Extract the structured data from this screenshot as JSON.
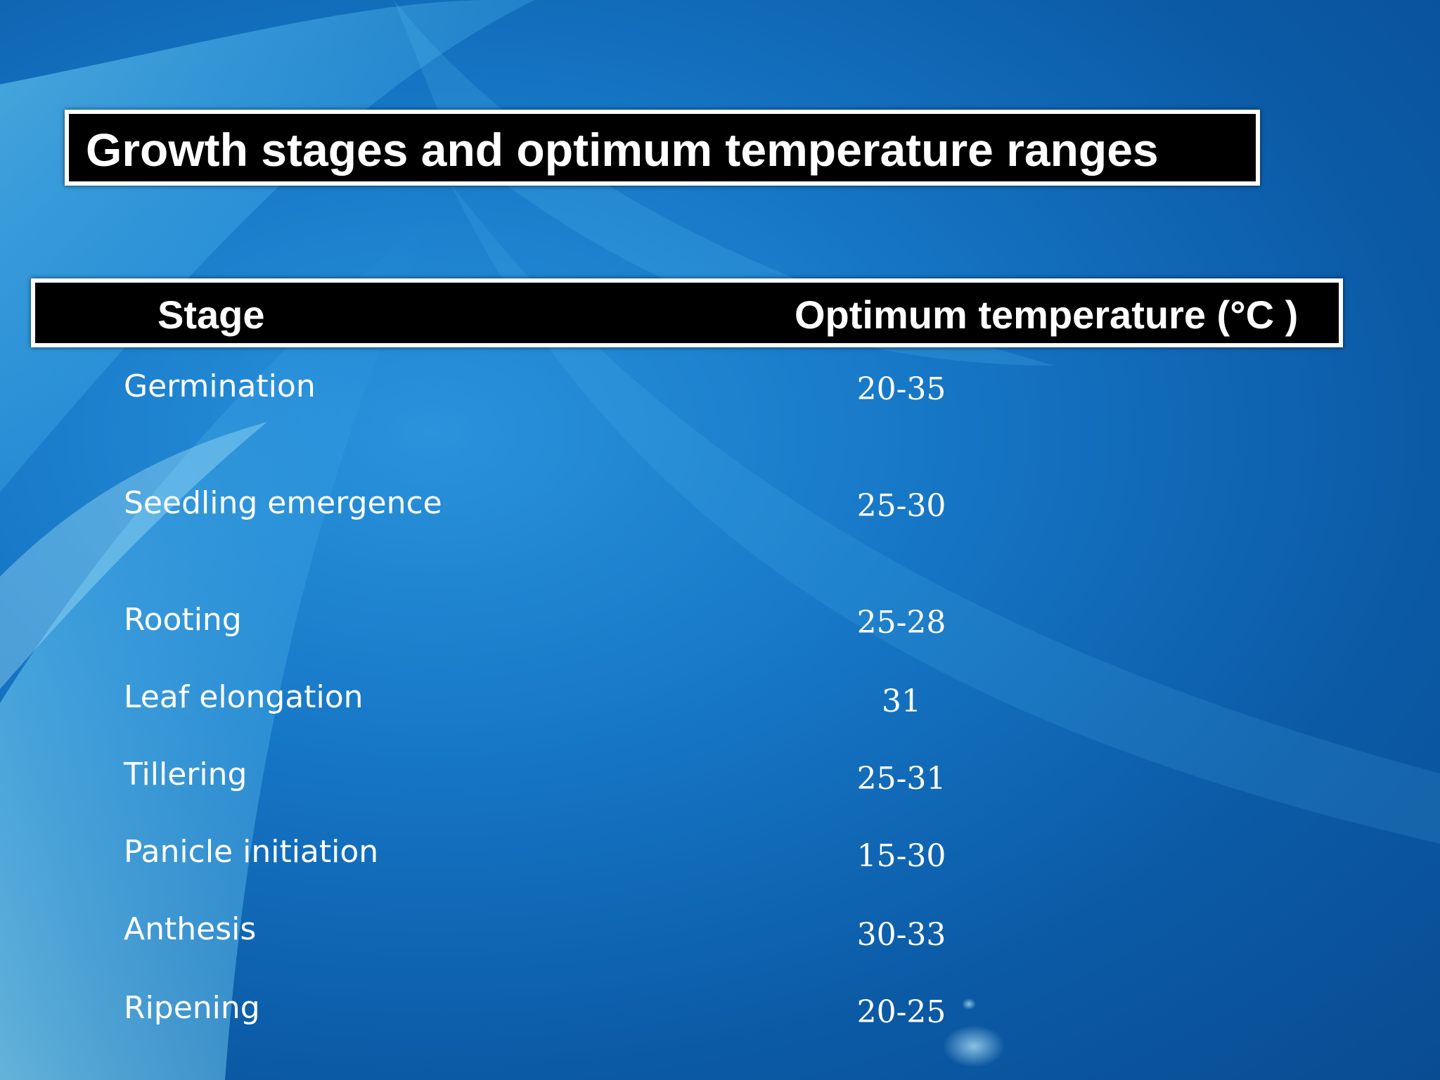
{
  "slide": {
    "title": "Growth stages and optimum temperature ranges"
  },
  "table": {
    "headers": {
      "stage": "Stage",
      "temperature": "Optimum temperature (°C )"
    },
    "rows": [
      {
        "stage": "Germination",
        "temperature": "20-35"
      },
      {
        "stage": "Seedling emergence",
        "temperature": "25-30"
      },
      {
        "stage": "Rooting",
        "temperature": "25-28"
      },
      {
        "stage": "Leaf elongation",
        "temperature": "31"
      },
      {
        "stage": "Tillering",
        "temperature": "25-31"
      },
      {
        "stage": "Panicle initiation",
        "temperature": "15-30"
      },
      {
        "stage": "Anthesis",
        "temperature": "30-33"
      },
      {
        "stage": "Ripening",
        "temperature": "20-25"
      }
    ]
  },
  "colors": {
    "background": "#1677c6",
    "box_fill": "#000000",
    "box_border": "#ffffff",
    "text": "#ffffff"
  }
}
